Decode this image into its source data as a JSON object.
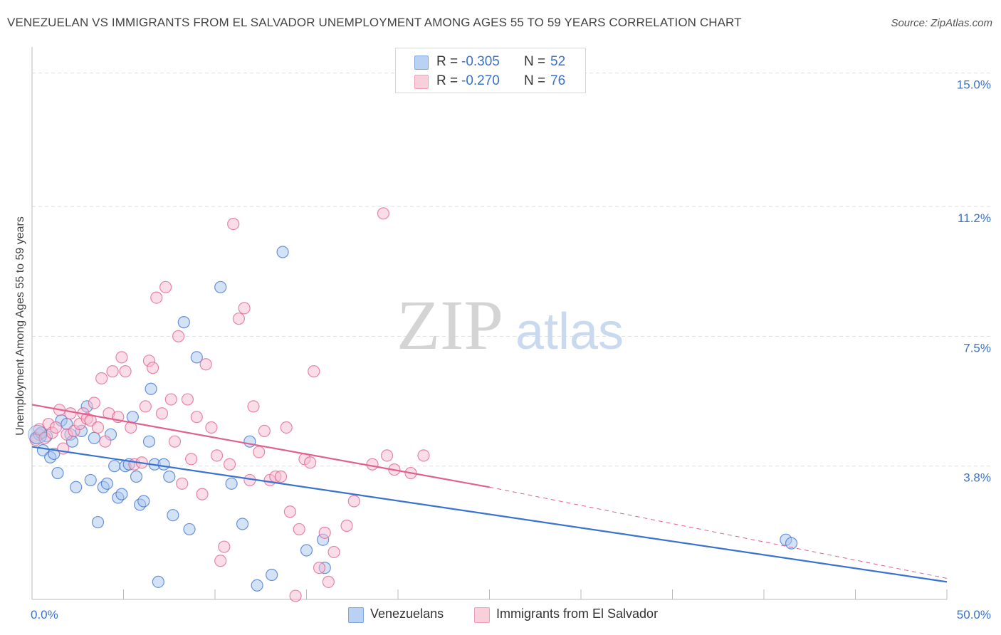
{
  "title": "VENEZUELAN VS IMMIGRANTS FROM EL SALVADOR UNEMPLOYMENT AMONG AGES 55 TO 59 YEARS CORRELATION CHART",
  "source": "Source: ZipAtlas.com",
  "watermark": {
    "zip": "ZIP",
    "atlas": "atlas"
  },
  "legend": {
    "r_label": "R =",
    "n_label": "N =",
    "rows": [
      {
        "r": "-0.305",
        "n": "52",
        "color": "#8fb3e8"
      },
      {
        "r": "-0.270",
        "n": "76",
        "color": "#f5b3c8"
      }
    ]
  },
  "chart_data": {
    "type": "scatter",
    "title": "VENEZUELAN VS IMMIGRANTS FROM EL SALVADOR UNEMPLOYMENT AMONG AGES 55 TO 59 YEARS CORRELATION CHART",
    "xlabel": "",
    "ylabel": "Unemployment Among Ages 55 to 59 years",
    "xlim": [
      0,
      50
    ],
    "ylim": [
      0,
      15.5
    ],
    "x_tick_labels": [
      "0.0%",
      "50.0%"
    ],
    "y_ticks": [
      3.8,
      7.5,
      11.2,
      15.0
    ],
    "y_tick_labels": [
      "3.8%",
      "7.5%",
      "11.2%",
      "15.0%"
    ],
    "grid": true,
    "series": [
      {
        "name": "Venezuelans",
        "color": "#3a72d0",
        "fill": "#a9c5ee",
        "trend": {
          "x0": 0,
          "y0": 4.35,
          "x1": 50,
          "y1": 0.5,
          "dashed_from": null
        },
        "points": [
          [
            0.2,
            4.6
          ],
          [
            0.4,
            4.7
          ],
          [
            0.6,
            4.25
          ],
          [
            0.8,
            4.65
          ],
          [
            1.0,
            4.05
          ],
          [
            1.2,
            4.15
          ],
          [
            1.4,
            3.6
          ],
          [
            1.6,
            5.1
          ],
          [
            1.9,
            5.0
          ],
          [
            2.1,
            4.7
          ],
          [
            2.2,
            4.5
          ],
          [
            2.4,
            3.2
          ],
          [
            2.7,
            4.8
          ],
          [
            3.0,
            5.5
          ],
          [
            3.2,
            3.4
          ],
          [
            3.4,
            4.6
          ],
          [
            3.6,
            2.2
          ],
          [
            3.9,
            3.2
          ],
          [
            4.1,
            3.3
          ],
          [
            4.3,
            4.7
          ],
          [
            4.5,
            3.8
          ],
          [
            4.7,
            2.9
          ],
          [
            4.9,
            3.0
          ],
          [
            5.1,
            3.8
          ],
          [
            5.3,
            3.85
          ],
          [
            5.5,
            5.2
          ],
          [
            5.7,
            3.5
          ],
          [
            5.9,
            2.7
          ],
          [
            6.1,
            2.8
          ],
          [
            6.4,
            4.5
          ],
          [
            6.5,
            6.0
          ],
          [
            6.7,
            3.85
          ],
          [
            6.9,
            0.5
          ],
          [
            7.2,
            3.85
          ],
          [
            7.5,
            3.5
          ],
          [
            7.7,
            2.4
          ],
          [
            8.3,
            7.9
          ],
          [
            8.6,
            2.0
          ],
          [
            9.0,
            6.9
          ],
          [
            10.3,
            8.9
          ],
          [
            10.9,
            3.3
          ],
          [
            11.5,
            2.15
          ],
          [
            11.9,
            4.5
          ],
          [
            12.3,
            0.4
          ],
          [
            13.1,
            0.7
          ],
          [
            13.7,
            9.9
          ],
          [
            15.0,
            1.4
          ],
          [
            15.9,
            1.7
          ],
          [
            16.0,
            0.9
          ],
          [
            41.2,
            1.7
          ],
          [
            41.5,
            1.6
          ],
          [
            0.5,
            4.75
          ]
        ]
      },
      {
        "name": "Immigrants from El Salvador",
        "color": "#e0608e",
        "fill": "#f6bccd",
        "trend": {
          "x0": 0,
          "y0": 5.55,
          "x1": 25,
          "y1": 3.2,
          "dashed_from": 25,
          "dashed_to": [
            50,
            0.6
          ]
        },
        "points": [
          [
            0.2,
            4.55
          ],
          [
            0.4,
            4.85
          ],
          [
            0.7,
            4.6
          ],
          [
            0.9,
            5.0
          ],
          [
            1.1,
            4.75
          ],
          [
            1.3,
            4.9
          ],
          [
            1.5,
            5.4
          ],
          [
            1.7,
            4.3
          ],
          [
            1.9,
            4.7
          ],
          [
            2.1,
            5.3
          ],
          [
            2.3,
            4.8
          ],
          [
            2.6,
            5.0
          ],
          [
            2.8,
            5.3
          ],
          [
            3.0,
            5.15
          ],
          [
            3.2,
            5.1
          ],
          [
            3.4,
            5.6
          ],
          [
            3.6,
            4.9
          ],
          [
            3.8,
            6.3
          ],
          [
            4.0,
            4.5
          ],
          [
            4.2,
            5.3
          ],
          [
            4.4,
            6.5
          ],
          [
            4.7,
            5.2
          ],
          [
            4.9,
            6.9
          ],
          [
            5.1,
            6.5
          ],
          [
            5.4,
            4.9
          ],
          [
            5.6,
            3.85
          ],
          [
            6.0,
            3.9
          ],
          [
            6.2,
            5.5
          ],
          [
            6.4,
            6.8
          ],
          [
            6.6,
            6.6
          ],
          [
            6.8,
            8.6
          ],
          [
            7.1,
            5.3
          ],
          [
            7.3,
            8.9
          ],
          [
            7.6,
            5.7
          ],
          [
            7.8,
            4.5
          ],
          [
            8.0,
            7.5
          ],
          [
            8.2,
            3.3
          ],
          [
            8.5,
            5.7
          ],
          [
            8.7,
            4.0
          ],
          [
            9.0,
            5.2
          ],
          [
            9.3,
            3.0
          ],
          [
            9.5,
            6.7
          ],
          [
            9.8,
            4.9
          ],
          [
            10.1,
            4.1
          ],
          [
            10.3,
            1.1
          ],
          [
            10.5,
            1.5
          ],
          [
            10.8,
            3.85
          ],
          [
            11.0,
            10.7
          ],
          [
            11.3,
            8.0
          ],
          [
            11.6,
            8.3
          ],
          [
            11.9,
            3.4
          ],
          [
            12.1,
            5.5
          ],
          [
            12.4,
            4.2
          ],
          [
            12.7,
            4.8
          ],
          [
            13.0,
            3.4
          ],
          [
            13.3,
            3.5
          ],
          [
            13.6,
            3.5
          ],
          [
            13.9,
            4.9
          ],
          [
            14.1,
            2.5
          ],
          [
            14.4,
            0.1
          ],
          [
            14.6,
            2.0
          ],
          [
            14.9,
            4.0
          ],
          [
            15.2,
            3.9
          ],
          [
            15.4,
            6.5
          ],
          [
            15.7,
            0.9
          ],
          [
            16.0,
            1.9
          ],
          [
            16.2,
            0.5
          ],
          [
            16.5,
            1.35
          ],
          [
            17.2,
            2.1
          ],
          [
            17.6,
            2.8
          ],
          [
            18.6,
            3.85
          ],
          [
            19.2,
            11.0
          ],
          [
            19.4,
            4.1
          ],
          [
            19.8,
            3.7
          ],
          [
            20.7,
            3.6
          ],
          [
            21.4,
            4.1
          ]
        ]
      }
    ],
    "legend_position": "top-center",
    "bottom_legend": [
      "Venezuelans",
      "Immigrants from El Salvador"
    ]
  }
}
